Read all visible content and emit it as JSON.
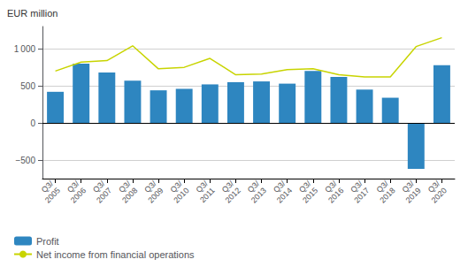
{
  "chart_data": {
    "type": "bar",
    "categories": [
      "Q3/\n2005",
      "Q3/\n2006",
      "Q3/\n2007",
      "Q3/\n2008",
      "Q3/\n2009",
      "Q3/\n2010",
      "Q3/\n2011",
      "Q3/\n2012",
      "Q3/\n2013",
      "Q3/\n2014",
      "Q3/\n2015",
      "Q3/\n2016",
      "Q3/\n2017",
      "Q3/\n2018",
      "Q3/\n2019",
      "Q3/\n2020"
    ],
    "series": [
      {
        "name": "Profit",
        "type": "bar",
        "color": "#2e86c0",
        "values": [
          420,
          800,
          680,
          570,
          440,
          460,
          520,
          550,
          560,
          530,
          700,
          620,
          450,
          340,
          -620,
          780
        ]
      },
      {
        "name": "Net income from financial operations",
        "type": "line",
        "color": "#c8d400",
        "values": [
          700,
          820,
          840,
          1040,
          730,
          750,
          870,
          650,
          660,
          720,
          730,
          650,
          620,
          620,
          1030,
          1150
        ]
      }
    ],
    "ylabel": "EUR million",
    "ylim": [
      -750,
      1300
    ],
    "yticks": [
      {
        "value": -500,
        "label": "−500"
      },
      0,
      500,
      {
        "value": 1000,
        "label": "1 000"
      }
    ],
    "grid": true,
    "legend": "bottom"
  }
}
